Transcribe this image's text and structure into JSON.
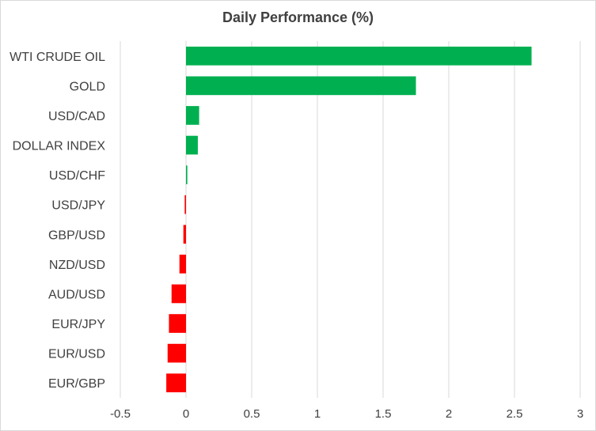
{
  "chart_data": {
    "type": "bar",
    "orientation": "horizontal",
    "title": "Daily Performance (%)",
    "xlabel": "",
    "ylabel": "",
    "xlim": [
      -0.5,
      3
    ],
    "x_ticks": [
      "-0.5",
      "0",
      "0.5",
      "1",
      "1.5",
      "2",
      "2.5",
      "3"
    ],
    "grid": true,
    "legend": "none",
    "categories": [
      "WTI CRUDE OIL",
      "GOLD",
      "USD/CAD",
      "DOLLAR INDEX",
      "USD/CHF",
      "USD/JPY",
      "GBP/USD",
      "NZD/USD",
      "AUD/USD",
      "EUR/JPY",
      "EUR/USD",
      "EUR/GBP"
    ],
    "values": [
      2.63,
      1.75,
      0.1,
      0.09,
      0.01,
      -0.01,
      -0.02,
      -0.05,
      -0.11,
      -0.13,
      -0.14,
      -0.15
    ],
    "colors": {
      "positive": "#00b050",
      "negative": "#ff0000"
    }
  }
}
